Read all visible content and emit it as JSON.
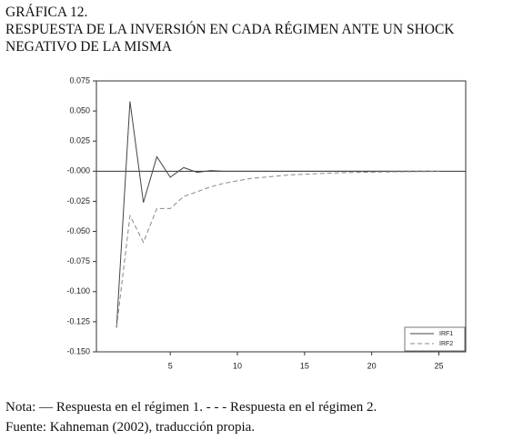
{
  "header": {
    "title": "GRÁFICA 12.",
    "subtitle": "RESPUESTA DE LA INVERSIÓN EN CADA RÉGIMEN ANTE UN SHOCK NEGATIVO DE LA MISMA"
  },
  "chart_data": {
    "type": "line",
    "x": [
      1,
      2,
      3,
      4,
      5,
      6,
      7,
      8,
      9,
      10,
      11,
      12,
      13,
      14,
      15,
      16,
      17,
      18,
      19,
      20,
      21,
      22,
      23,
      24,
      25
    ],
    "series": [
      {
        "name": "IRF1",
        "color": "#444444",
        "line_style": "solid",
        "values": [
          -0.13,
          0.058,
          -0.026,
          0.012,
          -0.005,
          0.003,
          -0.001,
          0.0005,
          0,
          0,
          0,
          0,
          0,
          0,
          0,
          0,
          0,
          0,
          0,
          0,
          0,
          0,
          0,
          0,
          0
        ]
      },
      {
        "name": "IRF2",
        "color": "#888888",
        "line_style": "dashed",
        "values": [
          -0.13,
          -0.037,
          -0.059,
          -0.031,
          -0.031,
          -0.021,
          -0.017,
          -0.013,
          -0.01,
          -0.008,
          -0.006,
          -0.005,
          -0.004,
          -0.003,
          -0.0025,
          -0.002,
          -0.0015,
          -0.0012,
          -0.001,
          -0.0008,
          -0.0006,
          -0.0005,
          -0.0004,
          -0.0003,
          -0.0002
        ]
      }
    ],
    "xlim": [
      -0.5,
      27
    ],
    "xticks": [
      5,
      10,
      15,
      20,
      25
    ],
    "ylim": [
      -0.15,
      0.075
    ],
    "yticks": [
      {
        "value": 0.075,
        "label": "0.075"
      },
      {
        "value": 0.05,
        "label": "0.050"
      },
      {
        "value": 0.025,
        "label": "0.025"
      },
      {
        "value": 0,
        "label": "-0.000"
      },
      {
        "value": -0.025,
        "label": "-0.025"
      },
      {
        "value": -0.05,
        "label": "-0.050"
      },
      {
        "value": -0.075,
        "label": "-0.075"
      },
      {
        "value": -0.1,
        "label": "-0.100"
      },
      {
        "value": -0.125,
        "label": "-0.125"
      },
      {
        "value": -0.15,
        "label": "-0.150"
      }
    ],
    "legend": "lower right"
  },
  "footer": {
    "note": "Nota: — Respuesta en el régimen 1. - - - Respuesta en el régimen 2.",
    "source": "Fuente: Kahneman (2002), traducción propia."
  }
}
